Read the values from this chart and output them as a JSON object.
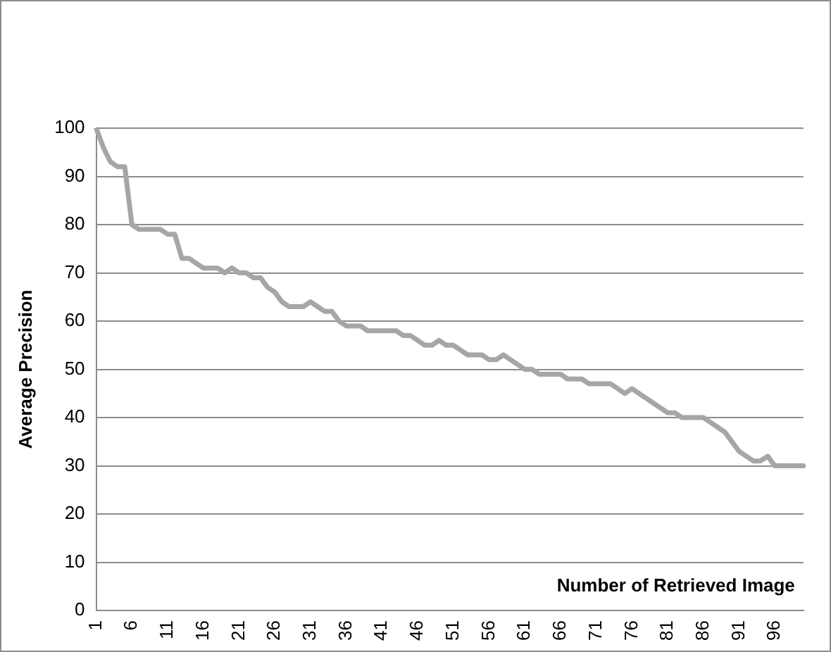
{
  "chart_data": {
    "type": "line",
    "xlabel": "Number of Retrieved Image",
    "ylabel": "Average Precision",
    "categories": [
      "1",
      null,
      null,
      null,
      null,
      "6",
      null,
      null,
      null,
      null,
      "11",
      null,
      null,
      null,
      null,
      "16",
      null,
      null,
      null,
      null,
      "21",
      null,
      null,
      null,
      null,
      "26",
      null,
      null,
      null,
      null,
      "31",
      null,
      null,
      null,
      null,
      "36",
      null,
      null,
      null,
      null,
      "41",
      null,
      null,
      null,
      null,
      "46",
      null,
      null,
      null,
      null,
      "51",
      null,
      null,
      null,
      null,
      "56",
      null,
      null,
      null,
      null,
      "61",
      null,
      null,
      null,
      null,
      "66",
      null,
      null,
      null,
      null,
      "71",
      null,
      null,
      null,
      null,
      "76",
      null,
      null,
      null,
      null,
      "81",
      null,
      null,
      null,
      null,
      "86",
      null,
      null,
      null,
      null,
      "91",
      null,
      null,
      null,
      null,
      "96",
      null,
      null,
      null,
      null
    ],
    "series": [
      {
        "color": "#a6a6a6",
        "values": [
          100,
          96,
          93,
          92,
          92,
          80,
          79,
          79,
          79,
          79,
          78,
          78,
          73,
          73,
          72,
          71,
          71,
          71,
          70,
          71,
          70,
          70,
          69,
          69,
          67,
          66,
          64,
          63,
          63,
          63,
          64,
          63,
          62,
          62,
          60,
          59,
          59,
          59,
          58,
          58,
          58,
          58,
          58,
          57,
          57,
          56,
          55,
          55,
          56,
          55,
          55,
          54,
          53,
          53,
          53,
          52,
          52,
          53,
          52,
          51,
          50,
          50,
          49,
          49,
          49,
          49,
          48,
          48,
          48,
          47,
          47,
          47,
          47,
          46,
          45,
          46,
          45,
          44,
          43,
          42,
          41,
          41,
          40,
          40,
          40,
          40,
          39,
          38,
          37,
          35,
          33,
          32,
          31,
          31,
          32,
          30,
          30,
          30,
          30,
          30
        ]
      }
    ],
    "ylim": [
      0,
      100
    ],
    "yticks": [
      0,
      10,
      20,
      30,
      40,
      50,
      60,
      70,
      80,
      90,
      100
    ],
    "grid": "y",
    "legend": false,
    "marker": "none",
    "line_style": "solid"
  }
}
